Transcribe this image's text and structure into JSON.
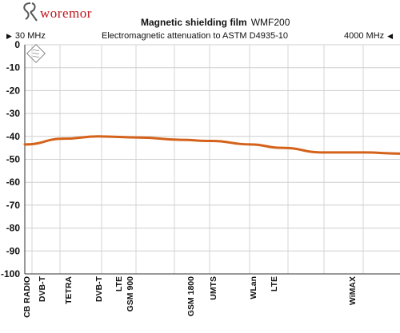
{
  "header": {
    "logo_text": "woremor",
    "title": "Magnetic shielding film",
    "product": "WMF200",
    "subtitle": "Electromagnetic attenuation to ASTM D4935-10",
    "range_start": "30 MHz",
    "range_end": "4000 MHz"
  },
  "colors": {
    "line": "#d4621a",
    "logo": "#c0141c"
  },
  "chart_data": {
    "type": "line",
    "title": "Magnetic shielding film WMF200",
    "subtitle": "Electromagnetic attenuation to ASTM D4935-10",
    "xlabel": "",
    "ylabel": "",
    "xlim": [
      30,
      4000
    ],
    "ylim": [
      -100,
      0
    ],
    "yticks": [
      0,
      -10,
      -20,
      -30,
      -40,
      -50,
      -60,
      -70,
      -80,
      -90,
      -100
    ],
    "grid": true,
    "x_categories": [
      "CB RADIO",
      "DVB-T",
      "TETRA",
      "DVB-T",
      "LTE",
      "GSM 900",
      "GSM 1800",
      "UMTS",
      "WLan",
      "LTE",
      "WiMAX"
    ],
    "series": [
      {
        "values": [
          -43.5,
          -41,
          -40,
          -40.5,
          -41.5,
          -42,
          -43.5,
          -45,
          -47,
          -47,
          -47.5
        ]
      }
    ]
  }
}
